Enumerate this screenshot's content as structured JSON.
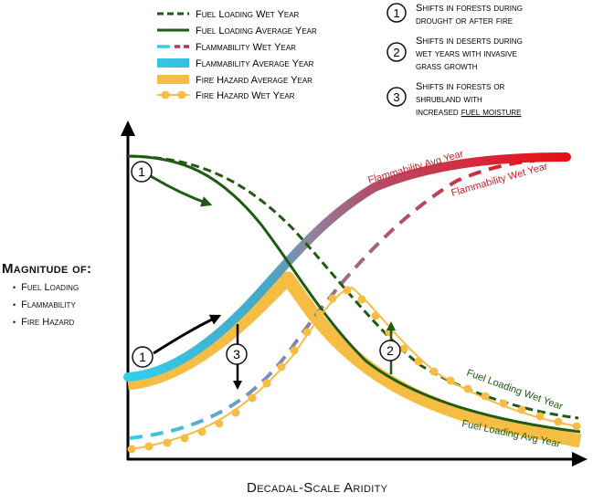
{
  "legend": [
    {
      "label": "Fuel Loading Wet Year",
      "color": "#1f5b14",
      "style": "dashed"
    },
    {
      "label": "Fuel Loading Average Year",
      "color": "#1f5b14",
      "style": "solid"
    },
    {
      "label": "Flammability Wet Year",
      "color": "#b2485a",
      "style": "dashed-gradient"
    },
    {
      "label": "Flammability Average Year",
      "color": "#e0161a",
      "style": "thick-gradient"
    },
    {
      "label": "Fire Hazard Average Year",
      "color": "#f6bd45",
      "style": "thick-band"
    },
    {
      "label": "Fire Hazard Wet Year",
      "color": "#f6bd45",
      "style": "dotted-line"
    }
  ],
  "notes": [
    {
      "num": "1",
      "lines": [
        "Shifts in forests during",
        "drought or after fire"
      ]
    },
    {
      "num": "2",
      "lines": [
        "Shifts in deserts during",
        "wet years with invasive",
        "grass growth"
      ]
    },
    {
      "num": "3",
      "lines": [
        "Shifts in forests or",
        "shrubland with",
        "increased "
      ],
      "underlined": "fuel moisture"
    }
  ],
  "axes": {
    "y_title": "Magnitude of:",
    "y_items": [
      "Fuel Loading",
      "Flammability",
      "Fire Hazard"
    ],
    "x_title": "Decadal-Scale Aridity"
  },
  "curve_labels": {
    "flam_avg": "Flammability Avg Year",
    "flam_wet": "Flammability Wet Year",
    "fuel_wet": "Fuel Loading Wet Year",
    "fuel_avg": "Fuel Loading Avg Year"
  },
  "markers": [
    "1",
    "1",
    "2",
    "3"
  ],
  "colors": {
    "fuel_green": "#1f5b14",
    "hazard_orange": "#f6bd45",
    "flam_cyan": "#2fd0ec",
    "flam_red": "#e0161a",
    "flam_mid": "#9a8aa0"
  }
}
